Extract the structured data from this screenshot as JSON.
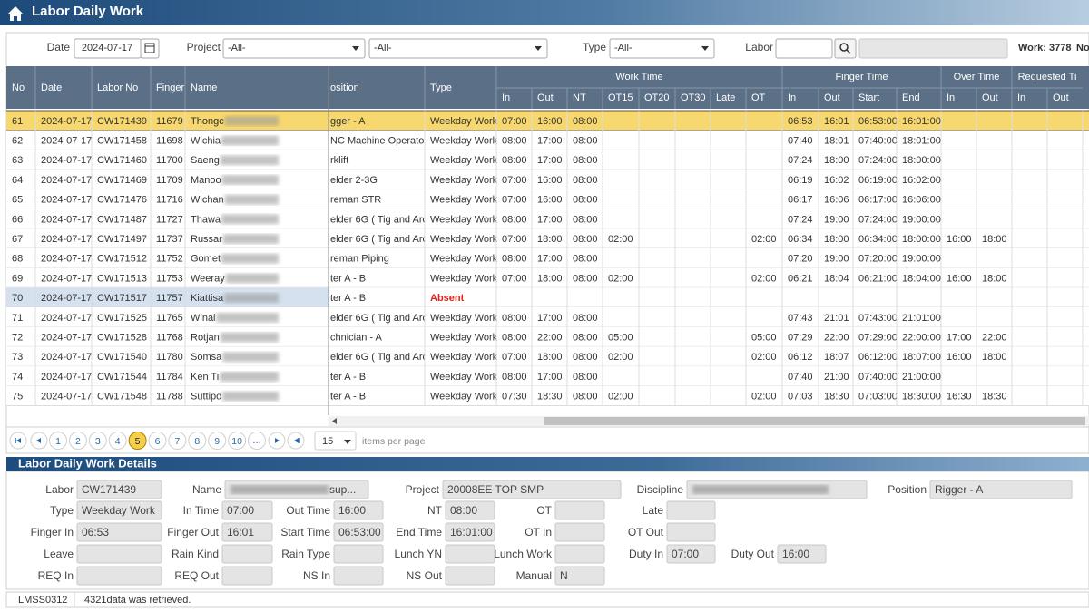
{
  "header": {
    "title": "Labor Daily Work"
  },
  "filters": {
    "date_label": "Date",
    "date": "2024-07-17",
    "project_label": "Project",
    "project": "-All-",
    "project_sub": "-All-",
    "type_label": "Type",
    "type": "-All-",
    "labor_label": "Labor",
    "work_count": "Work: 3778",
    "no_label": "No"
  },
  "table": {
    "groups": [
      "Work Time",
      "Finger Time",
      "Over Time",
      "Requested Ti"
    ],
    "columns": [
      "No",
      "Date",
      "Labor No",
      "Finger",
      "Name",
      "osition",
      "Type",
      "In",
      "Out",
      "NT",
      "OT15",
      "OT20",
      "OT30",
      "Late",
      "OT",
      "In",
      "Out",
      "Start",
      "End",
      "In",
      "Out",
      "In",
      "Out"
    ],
    "current_row": 0,
    "selected_row": 9,
    "rows": [
      {
        "cells": [
          61,
          "2024-07-17",
          "CW171439",
          11679,
          "Thongc",
          "gger - A",
          "Weekday Work",
          "07:00",
          "16:00",
          "08:00",
          null,
          null,
          null,
          null,
          null,
          "06:53",
          "16:01",
          "06:53:00",
          "16:01:00",
          null,
          null,
          null,
          null
        ]
      },
      {
        "cells": [
          62,
          "2024-07-17",
          "CW171458",
          11698,
          "Wichia",
          "NC Machine Operator",
          "Weekday Work",
          "08:00",
          "17:00",
          "08:00",
          null,
          null,
          null,
          null,
          null,
          "07:40",
          "18:01",
          "07:40:00",
          "18:01:00",
          null,
          null,
          null,
          null
        ]
      },
      {
        "cells": [
          63,
          "2024-07-17",
          "CW171460",
          11700,
          "Saeng",
          "rklift",
          "Weekday Work",
          "08:00",
          "17:00",
          "08:00",
          null,
          null,
          null,
          null,
          null,
          "07:24",
          "18:00",
          "07:24:00",
          "18:00:00",
          null,
          null,
          null,
          null
        ]
      },
      {
        "cells": [
          64,
          "2024-07-17",
          "CW171469",
          11709,
          "Manoo",
          "elder 2-3G",
          "Weekday Work",
          "07:00",
          "16:00",
          "08:00",
          null,
          null,
          null,
          null,
          null,
          "06:19",
          "16:02",
          "06:19:00",
          "16:02:00",
          null,
          null,
          null,
          null
        ]
      },
      {
        "cells": [
          65,
          "2024-07-17",
          "CW171476",
          11716,
          "Wichan",
          "reman STR",
          "Weekday Work",
          "07:00",
          "16:00",
          "08:00",
          null,
          null,
          null,
          null,
          null,
          "06:17",
          "16:06",
          "06:17:00",
          "16:06:00",
          null,
          null,
          null,
          null
        ]
      },
      {
        "cells": [
          66,
          "2024-07-17",
          "CW171487",
          11727,
          "Thawa",
          "elder 6G ( Tig and Arc )",
          "Weekday Work",
          "08:00",
          "17:00",
          "08:00",
          null,
          null,
          null,
          null,
          null,
          "07:24",
          "19:00",
          "07:24:00",
          "19:00:00",
          null,
          null,
          null,
          null
        ]
      },
      {
        "cells": [
          67,
          "2024-07-17",
          "CW171497",
          11737,
          "Russar",
          "elder 6G ( Tig and Arc )",
          "Weekday Work",
          "07:00",
          "18:00",
          "08:00",
          "02:00",
          null,
          null,
          null,
          "02:00",
          "06:34",
          "18:00",
          "06:34:00",
          "18:00:00",
          "16:00",
          "18:00",
          null,
          null
        ]
      },
      {
        "cells": [
          68,
          "2024-07-17",
          "CW171512",
          11752,
          "Gomet",
          "reman Piping",
          "Weekday Work",
          "08:00",
          "17:00",
          "08:00",
          null,
          null,
          null,
          null,
          null,
          "07:20",
          "19:00",
          "07:20:00",
          "19:00:00",
          null,
          null,
          null,
          null
        ]
      },
      {
        "cells": [
          69,
          "2024-07-17",
          "CW171513",
          11753,
          "Weeray",
          "ter A - B",
          "Weekday Work",
          "07:00",
          "18:00",
          "08:00",
          "02:00",
          null,
          null,
          null,
          "02:00",
          "06:21",
          "18:04",
          "06:21:00",
          "18:04:00",
          "16:00",
          "18:00",
          null,
          null
        ]
      },
      {
        "cells": [
          70,
          "2024-07-17",
          "CW171517",
          11757,
          "Kiattisa",
          "ter A - B",
          "Absent",
          null,
          null,
          null,
          null,
          null,
          null,
          null,
          null,
          null,
          null,
          null,
          null,
          null,
          null,
          null,
          null
        ],
        "type_color": "#e0201b"
      },
      {
        "cells": [
          71,
          "2024-07-17",
          "CW171525",
          11765,
          "Winai",
          "elder 6G ( Tig and Arc )",
          "Weekday Work",
          "08:00",
          "17:00",
          "08:00",
          null,
          null,
          null,
          null,
          null,
          "07:43",
          "21:01",
          "07:43:00",
          "21:01:00",
          null,
          null,
          null,
          null
        ]
      },
      {
        "cells": [
          72,
          "2024-07-17",
          "CW171528",
          11768,
          "Rotjan",
          "chnician - A",
          "Weekday Work",
          "08:00",
          "22:00",
          "08:00",
          "05:00",
          null,
          null,
          null,
          "05:00",
          "07:29",
          "22:00",
          "07:29:00",
          "22:00:00",
          "17:00",
          "22:00",
          null,
          null
        ]
      },
      {
        "cells": [
          73,
          "2024-07-17",
          "CW171540",
          11780,
          "Somsa",
          "elder 6G ( Tig and Arc )",
          "Weekday Work",
          "07:00",
          "18:00",
          "08:00",
          "02:00",
          null,
          null,
          null,
          "02:00",
          "06:12",
          "18:07",
          "06:12:00",
          "18:07:00",
          "16:00",
          "18:00",
          null,
          null
        ]
      },
      {
        "cells": [
          74,
          "2024-07-17",
          "CW171544",
          11784,
          "Ken Ti",
          "ter A - B",
          "Weekday Work",
          "08:00",
          "17:00",
          "08:00",
          null,
          null,
          null,
          null,
          null,
          "07:40",
          "21:00",
          "07:40:00",
          "21:00:00",
          null,
          null,
          null,
          null
        ]
      },
      {
        "cells": [
          75,
          "2024-07-17",
          "CW171548",
          11788,
          "Suttipo",
          "ter A - B",
          "Weekday Work",
          "07:30",
          "18:30",
          "08:00",
          "02:00",
          null,
          null,
          null,
          "02:00",
          "07:03",
          "18:30",
          "07:03:00",
          "18:30:00",
          "16:30",
          "18:30",
          null,
          null
        ]
      }
    ]
  },
  "pagination": {
    "pages": [
      1,
      2,
      3,
      4,
      5,
      6,
      7,
      8,
      9,
      10
    ],
    "more": "...",
    "current": 5,
    "page_size": 15,
    "page_size_label": "items per page"
  },
  "details": {
    "title": "Labor Daily Work Details",
    "rows": [
      [
        {
          "label": "Labor",
          "value": "CW171439"
        },
        {
          "label": "Name",
          "value": "sup..."
        },
        {
          "label": "Project",
          "value": "20008EE TOP SMP"
        },
        {
          "label": "Discipline",
          "value": null
        },
        {
          "label": "Position",
          "value": "Rigger - A"
        }
      ],
      [
        {
          "label": "Type",
          "value": "Weekday Work"
        },
        {
          "label": "In Time",
          "value": "07:00"
        },
        {
          "label": "Out Time",
          "value": "16:00"
        },
        {
          "label": "NT",
          "value": "08:00"
        },
        {
          "label": "OT",
          "value": null
        },
        {
          "label": "Late",
          "value": null
        }
      ],
      [
        {
          "label": "Finger In",
          "value": "06:53"
        },
        {
          "label": "Finger Out",
          "value": "16:01"
        },
        {
          "label": "Start Time",
          "value": "06:53:00"
        },
        {
          "label": "End Time",
          "value": "16:01:00"
        },
        {
          "label": "OT In",
          "value": null
        },
        {
          "label": "OT Out",
          "value": null
        }
      ],
      [
        {
          "label": "Leave",
          "value": null
        },
        {
          "label": "Rain Kind",
          "value": null
        },
        {
          "label": "Rain Type",
          "value": null
        },
        {
          "label": "Lunch YN",
          "value": null
        },
        {
          "label": "Lunch Work",
          "value": null
        },
        {
          "label": "Duty In",
          "value": "07:00"
        },
        {
          "label": "Duty Out",
          "value": "16:00"
        }
      ],
      [
        {
          "label": "REQ In",
          "value": null
        },
        {
          "label": "REQ Out",
          "value": null
        },
        {
          "label": "NS In",
          "value": null
        },
        {
          "label": "NS Out",
          "value": null
        },
        {
          "label": "Manual",
          "value": "N"
        }
      ]
    ]
  },
  "status": {
    "code": "LMSS0312",
    "message": "4321data was retrieved."
  }
}
